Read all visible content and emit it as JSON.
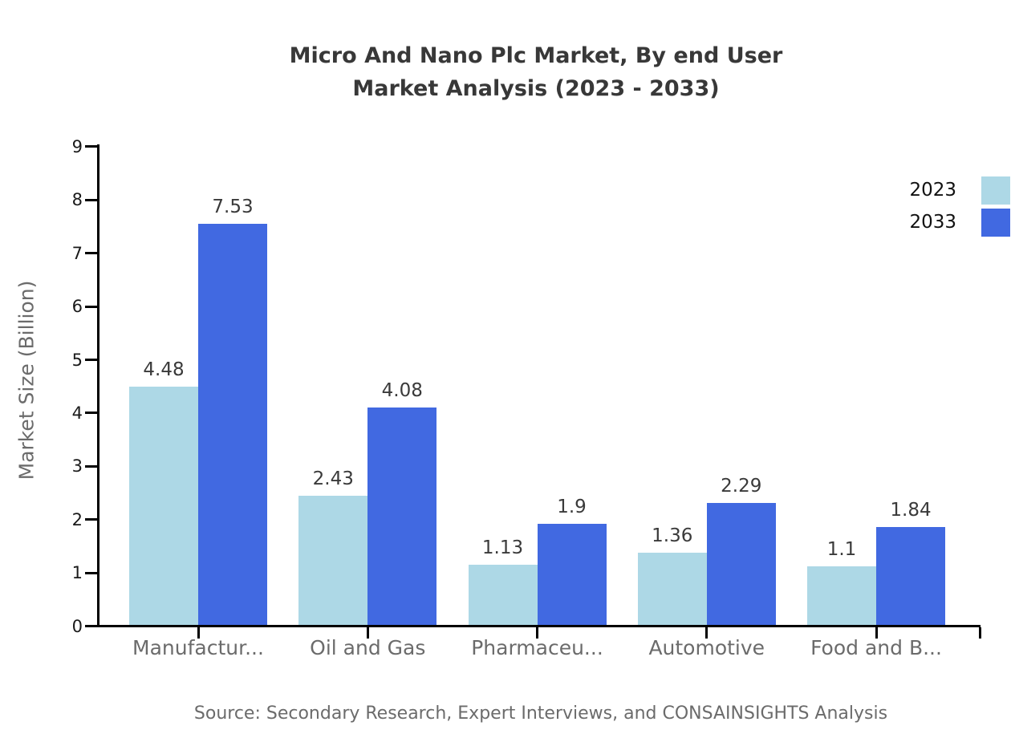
{
  "title": {
    "line1": "Micro And Nano Plc Market, By end User",
    "line2": "Market Analysis (2023 - 2033)"
  },
  "ylabel": "Market Size (Billion)",
  "source": "Source: Secondary Research, Expert Interviews, and CONSAINSIGHTS Analysis",
  "legend": [
    {
      "label": "2023",
      "color": "#add8e6"
    },
    {
      "label": "2033",
      "color": "#4169e1"
    }
  ],
  "colors": {
    "series_2023": "#add8e6",
    "series_2033": "#4169e1",
    "axis": "#000000",
    "title_text": "#383838",
    "tick_text": "#1a1a1a",
    "category_text": "#6b6b6b",
    "value_text": "#3a3a3a"
  },
  "chart_data": {
    "type": "bar",
    "categories": [
      "Manufactur...",
      "Oil and Gas",
      "Pharmaceu...",
      "Automotive",
      "Food and B..."
    ],
    "series": [
      {
        "name": "2023",
        "color": "#add8e6",
        "values": [
          4.48,
          2.43,
          1.13,
          1.36,
          1.1
        ]
      },
      {
        "name": "2033",
        "color": "#4169e1",
        "values": [
          7.53,
          4.08,
          1.9,
          2.29,
          1.84
        ]
      }
    ],
    "title": "Micro And Nano Plc Market, By end User Market Analysis (2023 - 2033)",
    "xlabel": "",
    "ylabel": "Market Size (Billion)",
    "ylim": [
      0,
      9
    ],
    "yticks": [
      0,
      1,
      2,
      3,
      4,
      5,
      6,
      7,
      8,
      9
    ],
    "grid": false,
    "legend_position": "top-right",
    "value_labels_shown": true
  }
}
